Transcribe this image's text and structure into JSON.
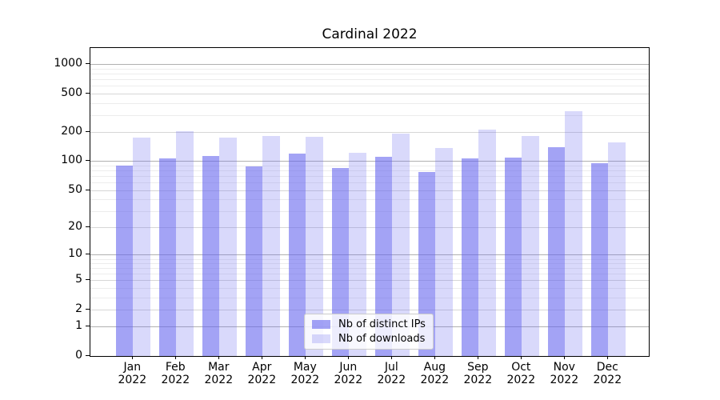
{
  "title": "Cardinal 2022",
  "chart_data": {
    "type": "bar",
    "title": "Cardinal 2022",
    "yscale": "log1p",
    "grid": true,
    "legend_position": "lower center",
    "categories": [
      "Jan",
      "Feb",
      "Mar",
      "Apr",
      "May",
      "Jun",
      "Jul",
      "Aug",
      "Sep",
      "Oct",
      "Nov",
      "Dec"
    ],
    "year": "2022",
    "series": [
      {
        "name": "Nb of distinct IPs",
        "color": "rgba(102,102,238,0.60)",
        "values": [
          90,
          107,
          114,
          89,
          121,
          85,
          111,
          77,
          107,
          108,
          139,
          95
        ]
      },
      {
        "name": "Nb of downloads",
        "color": "rgba(102,102,238,0.25)",
        "values": [
          175,
          203,
          174,
          181,
          179,
          122,
          193,
          137,
          214,
          182,
          331,
          156
        ]
      }
    ],
    "yticks": [
      0,
      1,
      2,
      5,
      10,
      20,
      50,
      100,
      200,
      500,
      1000
    ],
    "ylim": [
      0,
      1450
    ],
    "xlabel": "",
    "ylabel": ""
  }
}
